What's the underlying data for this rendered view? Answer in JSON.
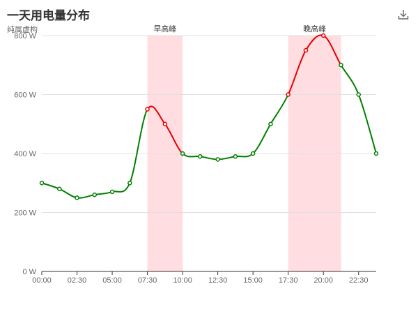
{
  "chart_data": {
    "type": "line",
    "title": "一天用电量分布",
    "subtitle": "纯属虚构",
    "x": [
      "00:00",
      "01:15",
      "02:30",
      "03:45",
      "05:00",
      "06:15",
      "07:30",
      "08:45",
      "10:00",
      "11:15",
      "12:30",
      "13:45",
      "15:00",
      "16:15",
      "17:30",
      "18:45",
      "20:00",
      "21:15",
      "22:30",
      "23:45"
    ],
    "values": [
      300,
      280,
      250,
      260,
      270,
      300,
      550,
      500,
      400,
      390,
      380,
      390,
      400,
      500,
      600,
      750,
      800,
      700,
      600,
      400
    ],
    "x_ticks": [
      "00:00",
      "02:30",
      "05:00",
      "07:30",
      "10:00",
      "12:30",
      "15:00",
      "17:30",
      "20:00",
      "22:30"
    ],
    "y_ticks": [
      "0 W",
      "200 W",
      "400 W",
      "600 W",
      "800 W"
    ],
    "ylim": [
      0,
      800
    ],
    "grid": true,
    "highlight_bands": [
      {
        "label": "早高峰",
        "from": "07:30",
        "to": "10:00"
      },
      {
        "label": "晚高峰",
        "from": "17:30",
        "to": "21:15"
      }
    ],
    "colors": {
      "line_normal": "#008000",
      "line_peak": "#e60000",
      "band_fill": "#ffdde0",
      "grid": "#e0e0e0",
      "axis": "#333333"
    }
  },
  "toolbar": {
    "download_icon": "download-icon"
  }
}
